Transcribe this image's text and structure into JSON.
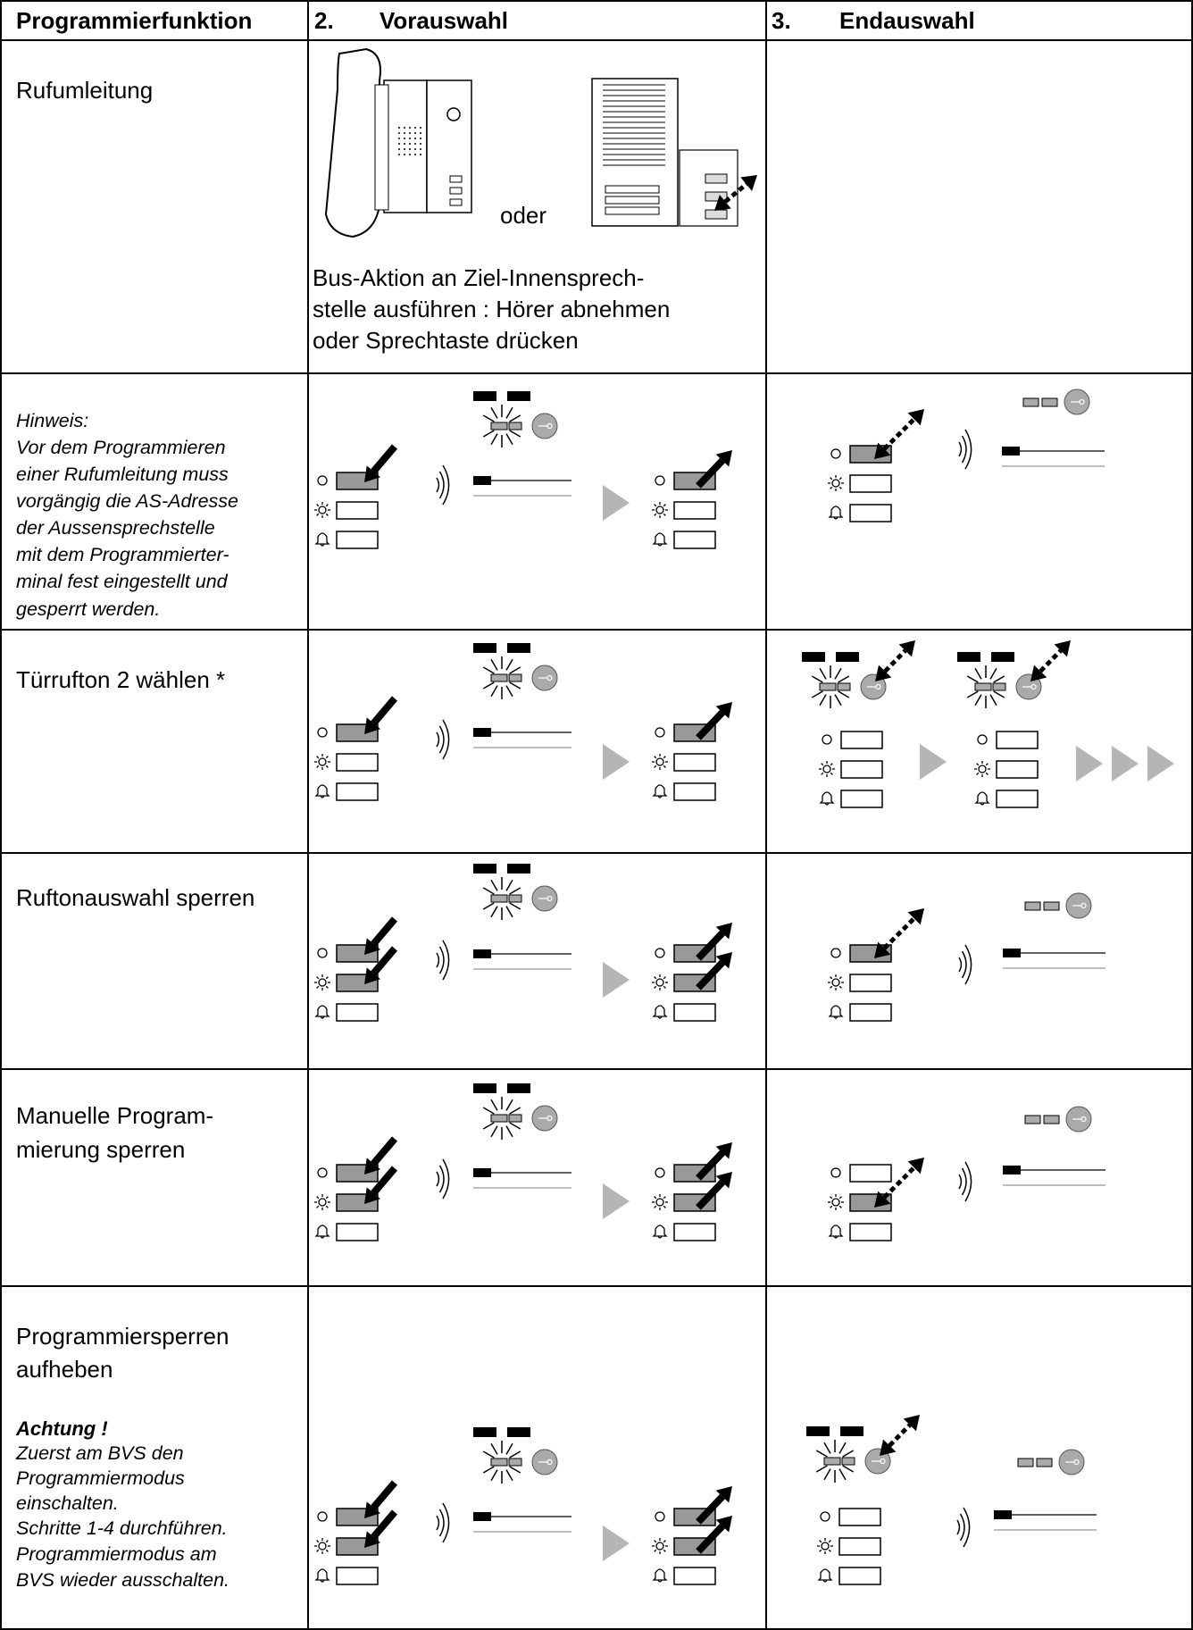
{
  "table": {
    "headers": {
      "function": "Programmierfunktion",
      "preselection": {
        "number": "2.",
        "label": "Vorauswahl"
      },
      "final": {
        "number": "3.",
        "label": "Endauswahl"
      }
    },
    "rows": [
      {
        "function": [
          "Rufumleitung"
        ],
        "preselection_or": "oder",
        "preselection_text": [
          "Bus-Aktion an Ziel-Innensprech-",
          "stelle ausführen : Hörer abnehmen",
          "oder Sprechtaste drücken"
        ]
      },
      {
        "note": [
          "Hinweis:",
          "Vor dem Programmieren",
          "einer Rufumleitung muss",
          "vorgängig die AS-Adresse",
          "der Aussensprechstelle",
          "mit dem Programmierter-",
          "minal fest eingestellt und",
          "gesperrt werden."
        ]
      },
      {
        "function": [
          "Türrufton 2 wählen *"
        ]
      },
      {
        "function": [
          "Ruftonauswahl sperren"
        ]
      },
      {
        "function": [
          "Manuelle Program-",
          "mierung sperren"
        ]
      },
      {
        "function": [
          "Programmiersperren",
          "aufheben"
        ],
        "warning": "Achtung !",
        "note": [
          "Zuerst am BVS den",
          "Programmiermodus",
          "einschalten.",
          "Schritte 1-4 durchführen.",
          "Programmiermodus am",
          "BVS wieder ausschalten."
        ]
      }
    ]
  }
}
